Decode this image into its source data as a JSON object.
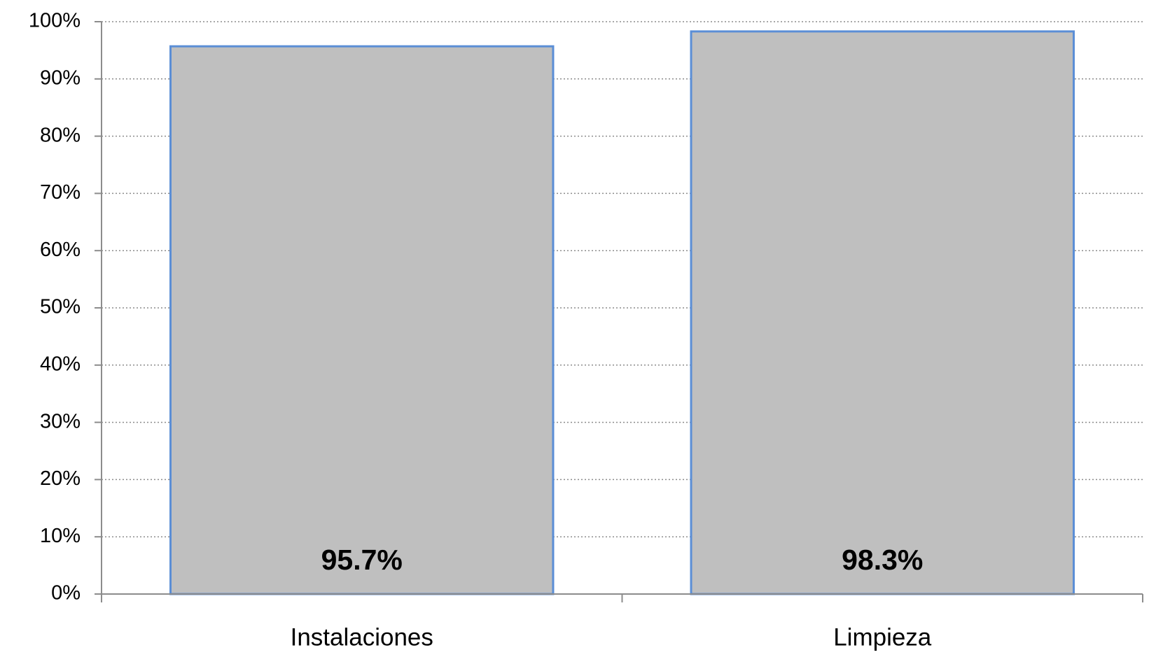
{
  "chart_data": {
    "type": "bar",
    "title": "",
    "xlabel": "",
    "ylabel": "",
    "categories": [
      "Instalaciones",
      "Limpieza"
    ],
    "values": [
      95.7,
      98.3
    ],
    "data_labels": [
      "95.7%",
      "98.3%"
    ],
    "ylim": [
      0,
      100
    ],
    "yticks": [
      0,
      10,
      20,
      30,
      40,
      50,
      60,
      70,
      80,
      90,
      100
    ],
    "ytick_labels": [
      "0%",
      "10%",
      "20%",
      "30%",
      "40%",
      "50%",
      "60%",
      "70%",
      "80%",
      "90%",
      "100%"
    ],
    "grid": true,
    "grid_style": "dotted",
    "legend": "none",
    "colors": {
      "bar_fill": "#bfbfbf",
      "bar_stroke": "#5b8ed6",
      "grid": "#8c8c8c",
      "axis": "#8c8c8c"
    }
  }
}
